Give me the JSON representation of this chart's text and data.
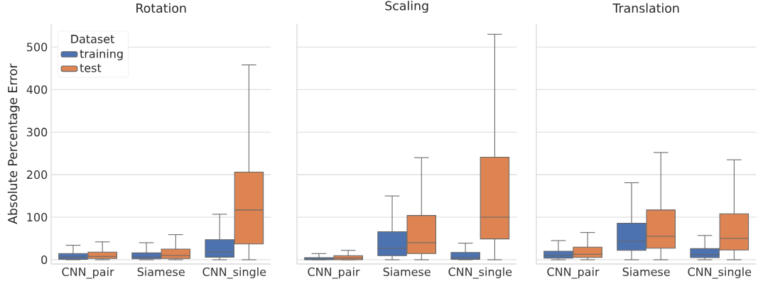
{
  "chart_data": [
    {
      "type": "box",
      "title": "Rotation",
      "ylabel": "Absolute Percentage Error",
      "categories": [
        "CNN_pair",
        "Siamese",
        "CNN_single"
      ],
      "ylim": [
        -10,
        555
      ],
      "yticks": [
        0,
        100,
        200,
        300,
        400,
        500
      ],
      "grid": "y",
      "legend": "top left",
      "legend_title": "Dataset",
      "series": [
        {
          "name": "training",
          "color": "#4c72b0",
          "boxes": [
            {
              "low": 0,
              "q1": 1,
              "median": 6,
              "q3": 14.5,
              "high": 34
            },
            {
              "low": 0,
              "q1": 2,
              "median": 6,
              "q3": 16,
              "high": 40
            },
            {
              "low": 0,
              "q1": 6,
              "median": 18,
              "q3": 47,
              "high": 107
            }
          ]
        },
        {
          "name": "test",
          "color": "#dd8452",
          "boxes": [
            {
              "low": 0,
              "q1": 3,
              "median": 8,
              "q3": 18,
              "high": 42
            },
            {
              "low": 0,
              "q1": 3,
              "median": 10,
              "q3": 25,
              "high": 59
            },
            {
              "low": 0,
              "q1": 37,
              "median": 117,
              "q3": 206,
              "high": 458
            }
          ]
        }
      ]
    },
    {
      "type": "box",
      "title": "Scaling",
      "categories": [
        "CNN_pair",
        "Siamese",
        "CNN_single"
      ],
      "ylim": [
        -10,
        555
      ],
      "yticks": [
        0,
        100,
        200,
        300,
        400,
        500
      ],
      "grid": "y",
      "tick_labels": "x",
      "series": [
        {
          "color": "#4c72b0",
          "boxes": [
            {
              "low": 0,
              "q1": 0,
              "median": 2,
              "q3": 5,
              "high": 14.5
            },
            {
              "low": 0,
              "q1": 9.5,
              "median": 27,
              "q3": 66,
              "high": 150
            },
            {
              "low": 0,
              "q1": 1,
              "median": 5.5,
              "q3": 17,
              "high": 39
            }
          ]
        },
        {
          "color": "#dd8452",
          "boxes": [
            {
              "low": 0,
              "q1": 0,
              "median": 4,
              "q3": 9.5,
              "high": 22
            },
            {
              "low": 0,
              "q1": 14.5,
              "median": 40,
              "q3": 104,
              "high": 240
            },
            {
              "low": 0,
              "q1": 49,
              "median": 100,
              "q3": 241,
              "high": 530
            }
          ]
        }
      ]
    },
    {
      "type": "box",
      "title": "Translation",
      "categories": [
        "CNN_pair",
        "Siamese",
        "CNN_single"
      ],
      "ylim": [
        -10,
        555
      ],
      "yticks": [
        0,
        100,
        200,
        300,
        400,
        500
      ],
      "grid": "y",
      "tick_labels": "x",
      "series": [
        {
          "color": "#4c72b0",
          "boxes": [
            {
              "low": 0,
              "q1": 4,
              "median": 9.5,
              "q3": 20,
              "high": 45
            },
            {
              "low": 0,
              "q1": 22,
              "median": 43,
              "q3": 86,
              "high": 181
            },
            {
              "low": 0,
              "q1": 5,
              "median": 12,
              "q3": 26,
              "high": 57
            }
          ]
        },
        {
          "color": "#dd8452",
          "boxes": [
            {
              "low": 0,
              "q1": 5.5,
              "median": 13,
              "q3": 29.5,
              "high": 64
            },
            {
              "low": 0,
              "q1": 27,
              "median": 55,
              "q3": 117,
              "high": 252
            },
            {
              "low": 0,
              "q1": 23,
              "median": 50,
              "q3": 108,
              "high": 235
            }
          ]
        }
      ]
    }
  ]
}
